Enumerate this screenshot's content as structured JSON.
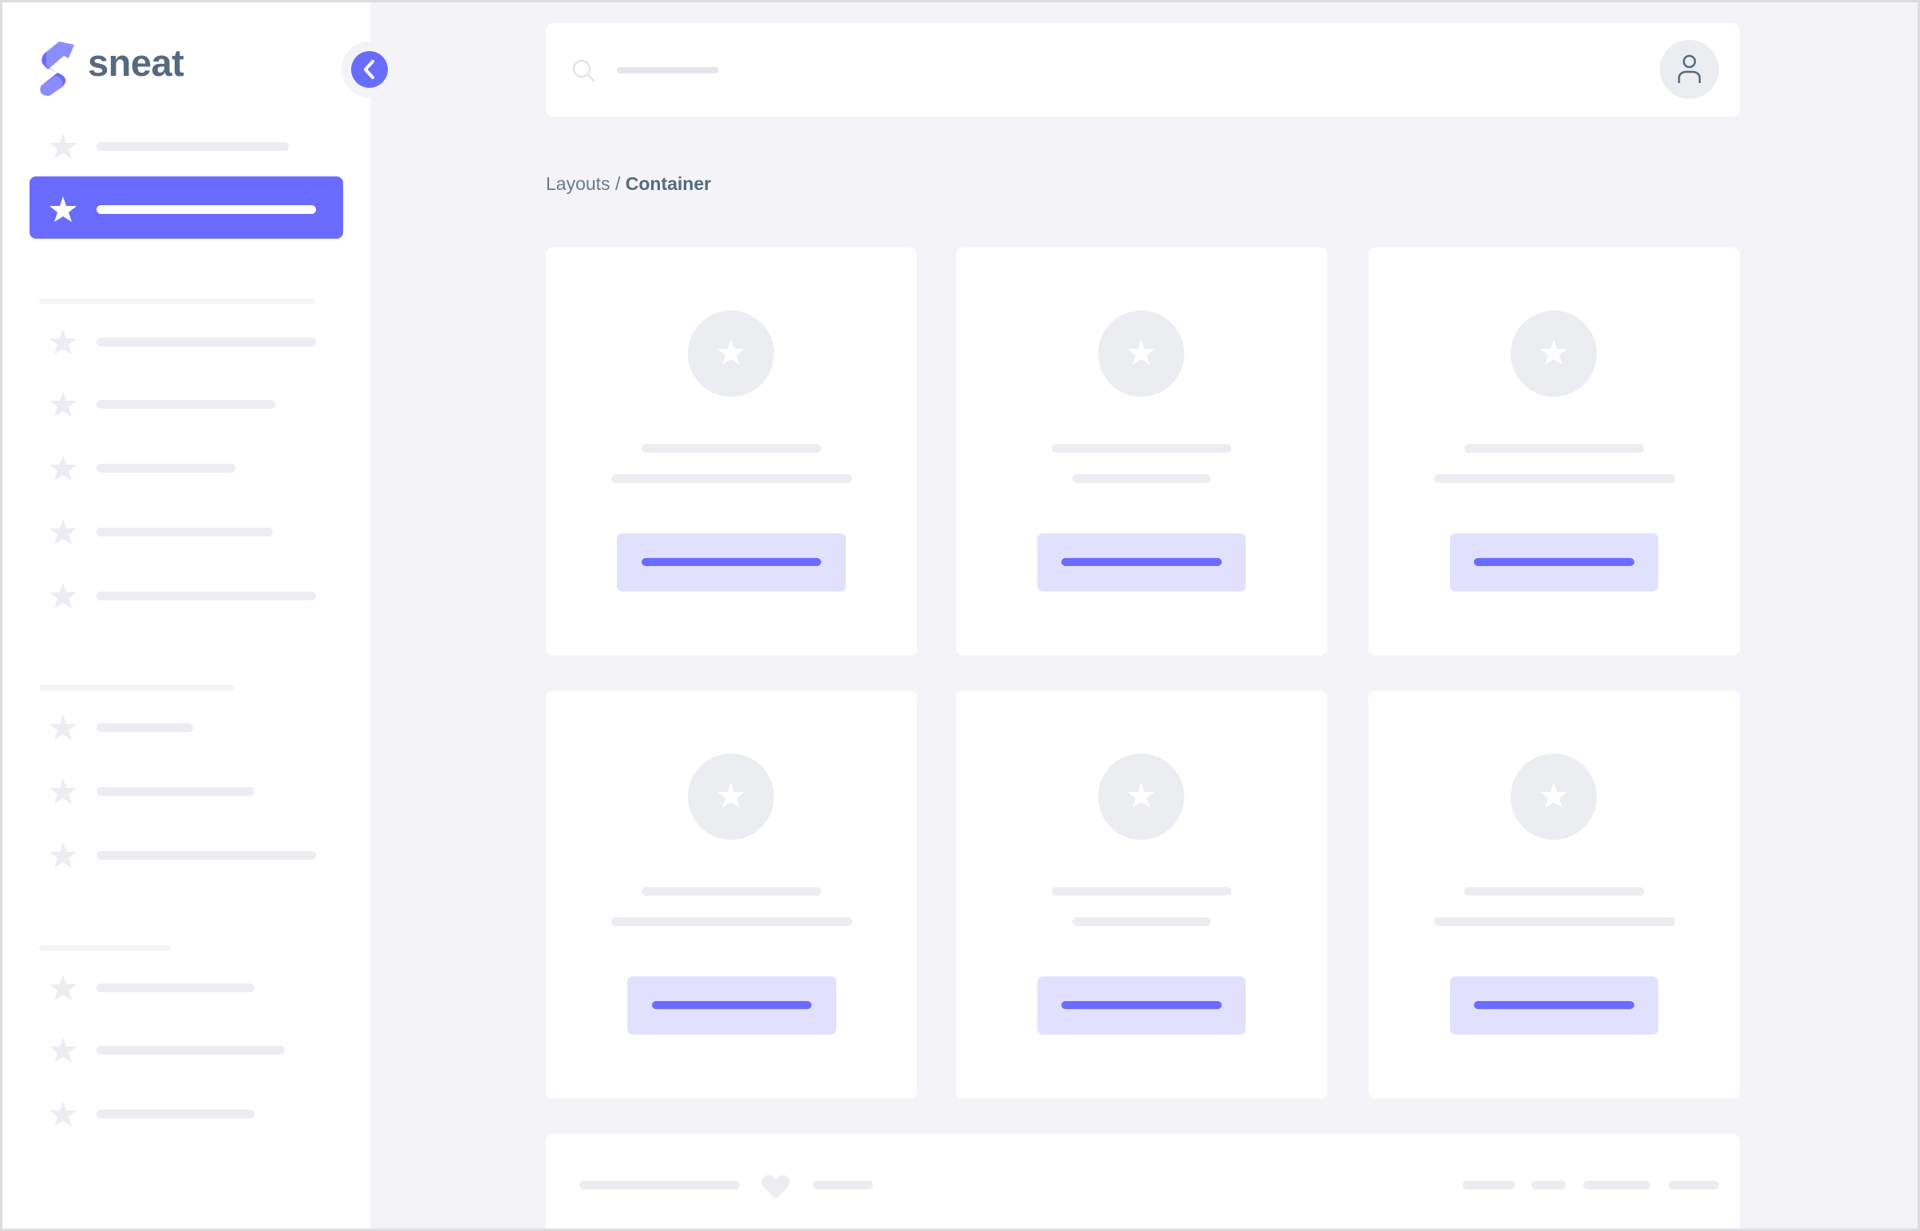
{
  "brand": {
    "name": "sneat"
  },
  "breadcrumb": {
    "parent": "Layouts",
    "separator": " / ",
    "current": "Container"
  },
  "colors": {
    "primary": "#696cff",
    "primary_light": "#e1e1ff",
    "skeleton": "#ecedf1",
    "background": "#f4f4f8",
    "text": "#566a7f"
  },
  "sidebar": {
    "active_index": 1,
    "item_count": 13,
    "section_count": 3
  },
  "cards": {
    "count": 6,
    "icon": "star-icon"
  },
  "icons": {
    "search": "search-icon",
    "user": "user-icon",
    "toggle": "chevron-left-icon",
    "footer": "heart-icon"
  }
}
